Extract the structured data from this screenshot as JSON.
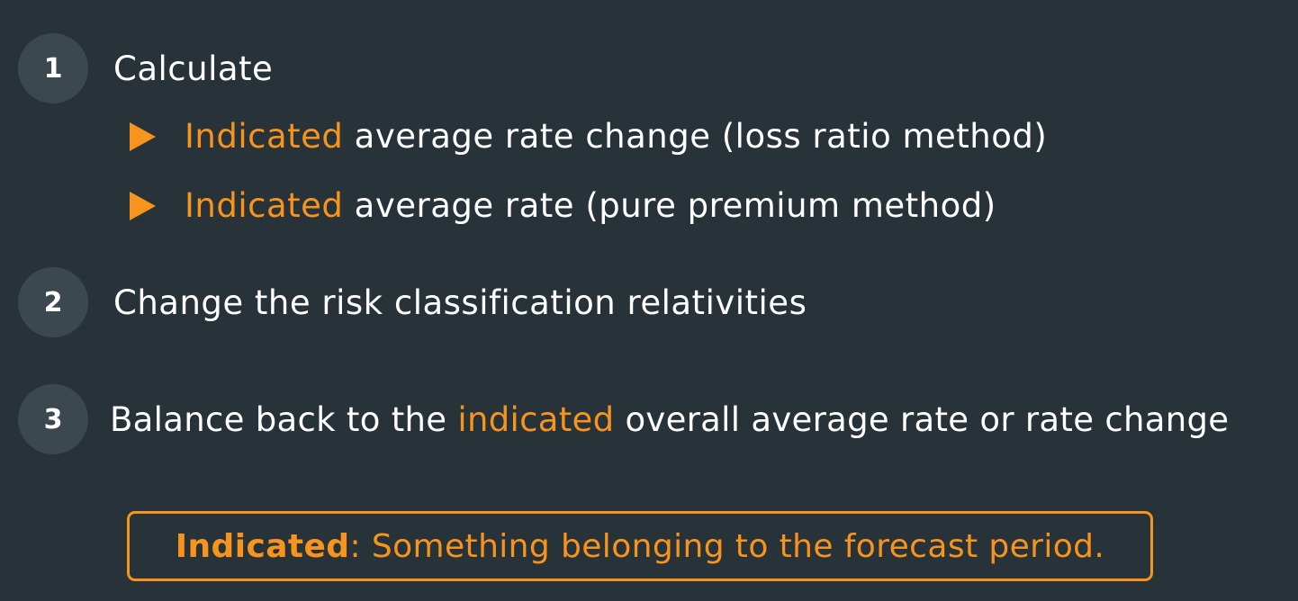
{
  "steps": [
    {
      "number": "1",
      "text": "Calculate"
    },
    {
      "number": "2",
      "text": "Change the risk classification relativities"
    },
    {
      "number": "3",
      "text_before": "Balance back to the ",
      "highlight": "indicated",
      "text_after": " overall average rate or rate change"
    }
  ],
  "bullets": [
    {
      "highlight": "Indicated",
      "text": " average rate change (loss ratio method)"
    },
    {
      "highlight": "Indicated",
      "text": " average rate (pure premium method)"
    }
  ],
  "definition": {
    "term": "Indicated",
    "text": ": Something belonging to the forecast period."
  },
  "colors": {
    "background": "#283239",
    "accent": "#f7941d",
    "circle": "#3b4850",
    "text": "#ffffff"
  },
  "icons": {
    "bullet": "play-triangle-icon"
  }
}
